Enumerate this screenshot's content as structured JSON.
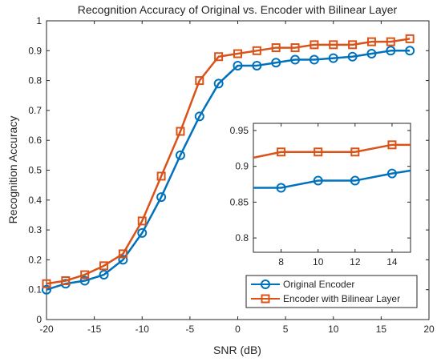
{
  "chart_data": {
    "type": "line",
    "title": "Recognition Accuracy of Original vs. Encoder with Bilinear Layer",
    "xlabel": "SNR (dB)",
    "ylabel": "Recognition Accuracy",
    "xlim": [
      -20,
      20
    ],
    "ylim": [
      0,
      1
    ],
    "xticks": [
      -20,
      -15,
      -10,
      -5,
      0,
      5,
      10,
      15,
      20
    ],
    "yticks": [
      0,
      0.1,
      0.2,
      0.3,
      0.4,
      0.5,
      0.6,
      0.7,
      0.8,
      0.9,
      1
    ],
    "grid": false,
    "legend": "bottom-right",
    "x": [
      -20,
      -18,
      -16,
      -14,
      -12,
      -10,
      -8,
      -6,
      -4,
      -2,
      0,
      2,
      4,
      6,
      8,
      10,
      12,
      14,
      16,
      18
    ],
    "series": [
      {
        "name": "Original Encoder",
        "color": "#0072BD",
        "marker": "circle",
        "values": [
          0.1,
          0.12,
          0.13,
          0.15,
          0.2,
          0.29,
          0.41,
          0.55,
          0.68,
          0.79,
          0.85,
          0.85,
          0.86,
          0.87,
          0.87,
          0.875,
          0.88,
          0.89,
          0.9,
          0.9
        ]
      },
      {
        "name": "Encoder with Bilinear Layer",
        "color": "#D95319",
        "marker": "square",
        "values": [
          0.12,
          0.13,
          0.15,
          0.18,
          0.22,
          0.33,
          0.48,
          0.63,
          0.8,
          0.88,
          0.89,
          0.9,
          0.91,
          0.91,
          0.92,
          0.92,
          0.92,
          0.93,
          0.93,
          0.94
        ]
      }
    ],
    "inset": {
      "xlim": [
        6.5,
        15
      ],
      "ylim": [
        0.78,
        0.96
      ],
      "xticks": [
        8,
        10,
        12,
        14
      ],
      "yticks": [
        0.8,
        0.85,
        0.9,
        0.95
      ],
      "series": [
        {
          "name": "Original Encoder",
          "x": [
            6.5,
            8,
            10,
            12,
            14,
            15
          ],
          "values": [
            0.87,
            0.87,
            0.88,
            0.88,
            0.89,
            0.894
          ]
        },
        {
          "name": "Encoder with Bilinear Layer",
          "x": [
            6.5,
            8,
            10,
            12,
            14,
            15
          ],
          "values": [
            0.912,
            0.92,
            0.92,
            0.92,
            0.93,
            0.93
          ]
        }
      ]
    }
  }
}
